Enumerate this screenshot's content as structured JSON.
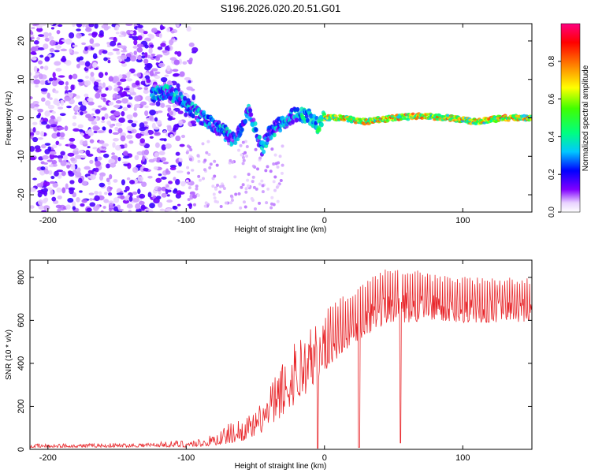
{
  "title": "S196.2026.020.20.51.G01",
  "chart_data": [
    {
      "type": "heatmap",
      "title": "S196.2026.020.20.51.G01",
      "xlabel": "Height of straight line (km)",
      "ylabel": "Frequency (Hz)",
      "xlim": [
        -213,
        150
      ],
      "ylim": [
        -24.5,
        24.5
      ],
      "xticks": [
        -200,
        -100,
        0,
        100
      ],
      "yticks": [
        -20,
        -10,
        0,
        10,
        20
      ],
      "ridge": {
        "x": [
          -125,
          -115,
          -105,
          -95,
          -85,
          -75,
          -65,
          -55,
          -45,
          -40,
          -30,
          -20,
          -12,
          -5,
          0,
          10,
          30,
          50,
          70,
          90,
          110,
          130,
          150
        ],
        "freq": [
          6,
          7,
          5,
          2,
          -1,
          -3,
          -6,
          2,
          -8,
          -4,
          -1,
          1,
          0.5,
          -2,
          0,
          0,
          -1,
          0,
          0.5,
          0,
          -1,
          0,
          0
        ]
      },
      "colorbar": {
        "label": "Normalized spectral amplitude",
        "range": [
          0.0,
          1.0
        ],
        "ticks": [
          0.0,
          0.2,
          0.4,
          0.6,
          0.8
        ],
        "tick_labels": [
          "0.0",
          "0.2",
          "0.4",
          "0.6",
          "0.8"
        ],
        "colors": [
          "#ffffff",
          "#d8a8ff",
          "#8000ff",
          "#0000ff",
          "#00c8ff",
          "#00ff80",
          "#40ff00",
          "#ffff00",
          "#ff8000",
          "#ff0000",
          "#ff0080"
        ]
      }
    },
    {
      "type": "line",
      "xlabel": "Height of straight line (km)",
      "ylabel": "SNR (10 * v/v)",
      "xlim": [
        -213,
        150
      ],
      "ylim": [
        0,
        880
      ],
      "xticks": [
        -200,
        -100,
        0,
        100
      ],
      "yticks": [
        0,
        200,
        400,
        600,
        800
      ],
      "color": "#e8262a",
      "envelope": {
        "x": [
          -213,
          -140,
          -120,
          -100,
          -85,
          -70,
          -60,
          -50,
          -40,
          -30,
          -20,
          -10,
          0,
          10,
          20,
          30,
          40,
          50,
          60,
          80,
          100,
          120,
          150
        ],
        "base": [
          8,
          10,
          12,
          10,
          15,
          25,
          40,
          60,
          100,
          160,
          220,
          280,
          360,
          430,
          490,
          530,
          570,
          590,
          590,
          600,
          590,
          590,
          595
        ],
        "peak": [
          25,
          30,
          35,
          45,
          55,
          120,
          150,
          170,
          300,
          420,
          560,
          580,
          640,
          700,
          740,
          780,
          830,
          860,
          840,
          820,
          810,
          800,
          800
        ]
      },
      "dropouts": [
        {
          "x": -5,
          "value": 5
        },
        {
          "x": 25,
          "value": 10
        },
        {
          "x": 55,
          "value": 30
        }
      ]
    }
  ]
}
